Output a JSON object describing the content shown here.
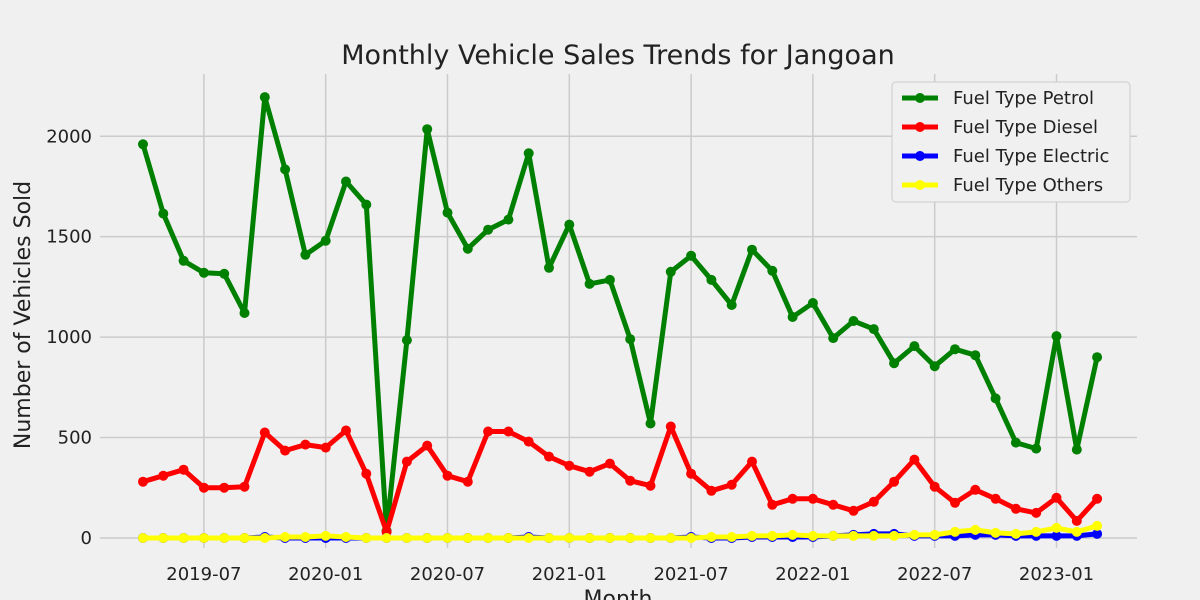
{
  "chart_data": {
    "type": "line",
    "title": "Monthly Vehicle Sales Trends for Jangoan",
    "xlabel": "Month",
    "ylabel": "Number of Vehicles Sold",
    "x": [
      "2019-04",
      "2019-05",
      "2019-06",
      "2019-07",
      "2019-08",
      "2019-09",
      "2019-10",
      "2019-11",
      "2019-12",
      "2020-01",
      "2020-02",
      "2020-03",
      "2020-04",
      "2020-05",
      "2020-06",
      "2020-07",
      "2020-08",
      "2020-09",
      "2020-10",
      "2020-11",
      "2020-12",
      "2021-01",
      "2021-02",
      "2021-03",
      "2021-04",
      "2021-05",
      "2021-06",
      "2021-07",
      "2021-08",
      "2021-09",
      "2021-10",
      "2021-11",
      "2021-12",
      "2022-01",
      "2022-02",
      "2022-03",
      "2022-04",
      "2022-05",
      "2022-06",
      "2022-07",
      "2022-08",
      "2022-09",
      "2022-10",
      "2022-11",
      "2022-12",
      "2023-01",
      "2023-02",
      "2023-03"
    ],
    "x_ticks": [
      "2019-07",
      "2020-01",
      "2020-07",
      "2021-01",
      "2021-07",
      "2022-01",
      "2022-07",
      "2023-01"
    ],
    "y_ticks": [
      0,
      500,
      1000,
      1500,
      2000
    ],
    "ylim": [
      -50,
      2310
    ],
    "grid": true,
    "legend_position": "top-right",
    "series": [
      {
        "name": "Fuel Type Petrol",
        "color": "#008000",
        "values": [
          1960,
          1615,
          1380,
          1320,
          1315,
          1120,
          2195,
          1835,
          1410,
          1480,
          1775,
          1660,
          35,
          985,
          2035,
          1620,
          1440,
          1535,
          1585,
          1915,
          1345,
          1560,
          1265,
          1285,
          990,
          570,
          1325,
          1405,
          1285,
          1160,
          1435,
          1330,
          1100,
          1170,
          995,
          1080,
          1040,
          870,
          955,
          855,
          940,
          910,
          695,
          475,
          445,
          1005,
          440,
          900
        ]
      },
      {
        "name": "Fuel Type Diesel",
        "color": "#ff0000",
        "values": [
          280,
          310,
          340,
          250,
          250,
          255,
          525,
          435,
          465,
          450,
          535,
          320,
          30,
          380,
          460,
          310,
          280,
          530,
          530,
          480,
          405,
          360,
          330,
          370,
          285,
          260,
          555,
          320,
          235,
          265,
          380,
          165,
          195,
          195,
          165,
          135,
          180,
          280,
          390,
          255,
          175,
          240,
          195,
          145,
          125,
          200,
          85,
          195
        ]
      },
      {
        "name": "Fuel Type Electric",
        "color": "#0000ff",
        "values": [
          0,
          0,
          0,
          0,
          0,
          0,
          5,
          0,
          0,
          0,
          0,
          0,
          0,
          0,
          0,
          0,
          0,
          0,
          0,
          5,
          0,
          0,
          0,
          0,
          0,
          0,
          0,
          5,
          0,
          0,
          5,
          5,
          5,
          5,
          10,
          15,
          20,
          20,
          10,
          10,
          10,
          15,
          15,
          10,
          10,
          10,
          10,
          20
        ]
      },
      {
        "name": "Fuel Type Others",
        "color": "#ffff00",
        "values": [
          0,
          0,
          0,
          0,
          0,
          0,
          0,
          5,
          5,
          10,
          5,
          0,
          0,
          0,
          0,
          0,
          0,
          0,
          0,
          0,
          0,
          0,
          0,
          0,
          0,
          0,
          0,
          0,
          5,
          5,
          10,
          10,
          15,
          10,
          10,
          10,
          10,
          10,
          15,
          15,
          30,
          40,
          25,
          20,
          30,
          50,
          30,
          60
        ]
      }
    ]
  }
}
